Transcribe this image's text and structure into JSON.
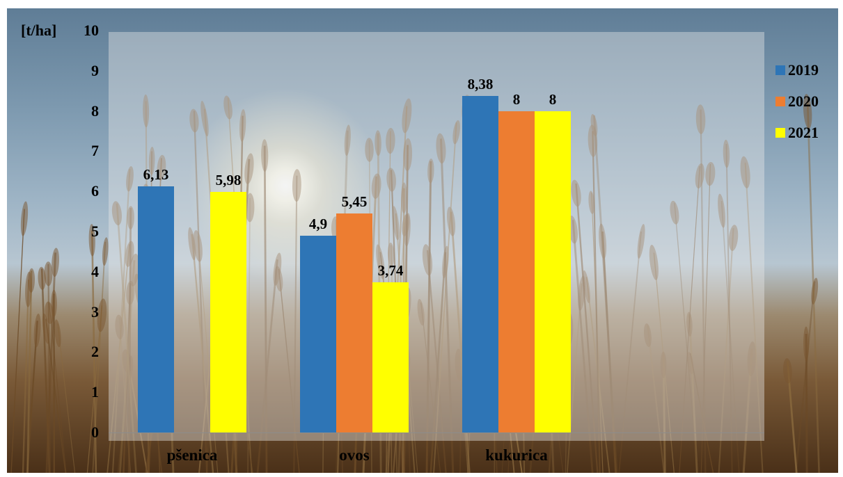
{
  "chart_data": {
    "type": "bar",
    "categories": [
      "pšenica",
      "ovos",
      "kukurica"
    ],
    "series": [
      {
        "name": "2019",
        "color": "#2e75b6",
        "values": [
          6.13,
          4.9,
          8.38
        ],
        "labels": [
          "6,13",
          "4,9",
          "8,38"
        ]
      },
      {
        "name": "2020",
        "color": "#ed7d31",
        "values": [
          null,
          5.45,
          8
        ],
        "labels": [
          "",
          "5,45",
          "8"
        ]
      },
      {
        "name": "2021",
        "color": "#ffff00",
        "values": [
          5.98,
          3.74,
          8
        ],
        "labels": [
          "5,98",
          "3,74",
          "8"
        ]
      }
    ],
    "ylabel": "[t/ha]",
    "ylim": [
      0,
      10
    ],
    "yticks": [
      "0",
      "1",
      "2",
      "3",
      "4",
      "5",
      "6",
      "7",
      "8",
      "9",
      "10"
    ],
    "title": "",
    "xlabel": "",
    "grid": false,
    "legend": "right"
  }
}
